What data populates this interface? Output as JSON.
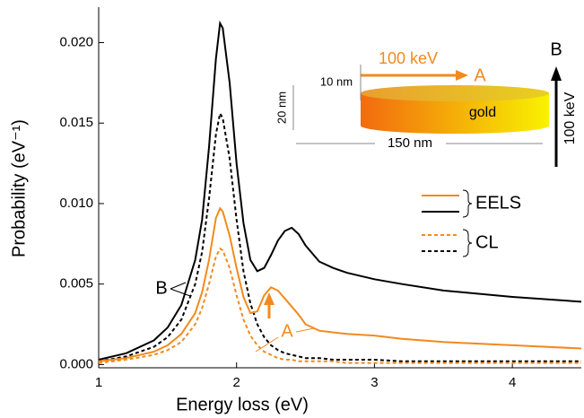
{
  "chart_data": {
    "type": "line",
    "xlabel": "Energy loss (eV)",
    "ylabel": "Probability (eV⁻¹)",
    "x": [
      1.0,
      1.2,
      1.4,
      1.5,
      1.6,
      1.7,
      1.75,
      1.8,
      1.85,
      1.88,
      1.9,
      1.95,
      2.0,
      2.05,
      2.1,
      2.15,
      2.2,
      2.25,
      2.3,
      2.35,
      2.4,
      2.45,
      2.5,
      2.6,
      2.7,
      2.8,
      3.0,
      3.2,
      3.5,
      4.0,
      4.5
    ],
    "series": [
      {
        "name": "EELS",
        "color": "#f28a1e",
        "dashed": false,
        "values": [
          0.0002,
          0.0004,
          0.0008,
          0.0012,
          0.0019,
          0.0032,
          0.0045,
          0.0065,
          0.0091,
          0.0097,
          0.0095,
          0.008,
          0.006,
          0.0042,
          0.0032,
          0.0033,
          0.0043,
          0.0048,
          0.0046,
          0.0041,
          0.0036,
          0.0031,
          0.0025,
          0.0021,
          0.002,
          0.0019,
          0.0018,
          0.0016,
          0.0014,
          0.0012,
          0.001
        ]
      },
      {
        "name": "EELS",
        "color": "#000000",
        "dashed": false,
        "values": [
          0.0003,
          0.0007,
          0.0015,
          0.0023,
          0.0037,
          0.0065,
          0.009,
          0.0135,
          0.019,
          0.0212,
          0.0209,
          0.0175,
          0.0125,
          0.0088,
          0.0065,
          0.0058,
          0.006,
          0.0068,
          0.0077,
          0.0083,
          0.0085,
          0.0081,
          0.0074,
          0.0064,
          0.006,
          0.0057,
          0.0053,
          0.005,
          0.0046,
          0.0042,
          0.0039
        ]
      },
      {
        "name": "CL",
        "color": "#f28a1e",
        "dashed": true,
        "values": [
          0.0001,
          0.0003,
          0.0006,
          0.0009,
          0.0014,
          0.0025,
          0.0035,
          0.005,
          0.0067,
          0.0072,
          0.0071,
          0.006,
          0.0043,
          0.0028,
          0.0018,
          0.0012,
          0.0008,
          0.0006,
          0.0004,
          0.0003,
          0.0003,
          0.0002,
          0.0002,
          0.0002,
          0.0002,
          0.0001,
          0.0001,
          0.0001,
          0.0001,
          0.0001,
          0.0001
        ]
      },
      {
        "name": "CL",
        "color": "#000000",
        "dashed": true,
        "values": [
          0.0002,
          0.0005,
          0.0011,
          0.0017,
          0.0028,
          0.005,
          0.007,
          0.0103,
          0.0143,
          0.0156,
          0.0153,
          0.0128,
          0.009,
          0.0058,
          0.0038,
          0.0025,
          0.0017,
          0.0012,
          0.0009,
          0.0007,
          0.0006,
          0.0005,
          0.0004,
          0.0004,
          0.0003,
          0.0003,
          0.0003,
          0.0002,
          0.0002,
          0.0002,
          0.0002
        ]
      }
    ],
    "xlim": [
      1,
      4.5
    ],
    "xticks": [
      1,
      2,
      3,
      4
    ],
    "ylim": [
      -0.0002,
      0.0222
    ],
    "yticks": [
      {
        "value": 0,
        "label": "0.000"
      },
      {
        "value": 0.005,
        "label": "0.005"
      },
      {
        "value": 0.01,
        "label": "0.010"
      },
      {
        "value": 0.015,
        "label": "0.015"
      },
      {
        "value": 0.02,
        "label": "0.020"
      }
    ],
    "annotations": {
      "a": "A",
      "b": "B"
    },
    "inset": {
      "beam_a_energy": "100 keV",
      "beam_a": "A",
      "depth": "10 nm",
      "thickness": "20 nm",
      "material": "gold",
      "diameter": "150 nm",
      "beam_b": "B",
      "beam_b_energy": "100 keV"
    }
  }
}
